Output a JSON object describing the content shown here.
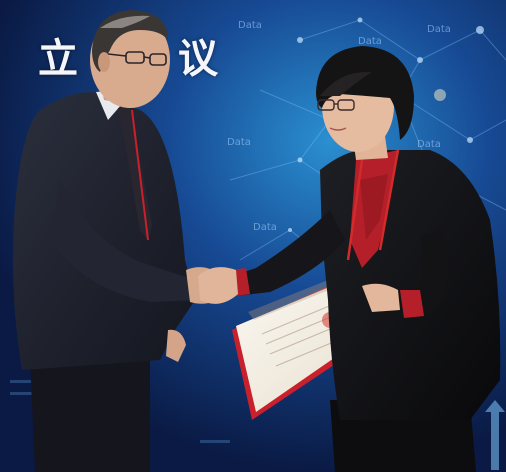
{
  "banner": {
    "chars": [
      "",
      "立",
      "议"
    ]
  },
  "background": {
    "data_labels": [
      "Data",
      "Data",
      "Data",
      "Data",
      "Data",
      "Data"
    ],
    "color": "#0c1f4a"
  },
  "colors": {
    "suit_dark": "#1b1e2a",
    "jacket_black": "#121214",
    "accent_red": "#c8202c",
    "certificate": "#f3efe6"
  }
}
